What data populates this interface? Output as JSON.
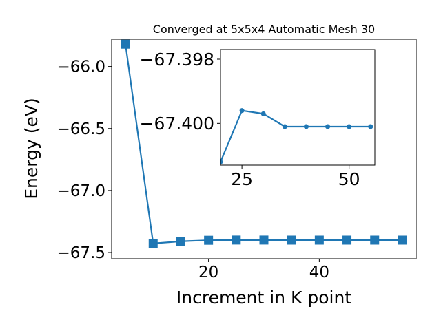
{
  "chart_data": [
    {
      "type": "line",
      "title": "Converged at 5x5x4 Automatic Mesh 30",
      "xlabel": "Increment in K point",
      "ylabel": "Energy (eV)",
      "xlim": [
        2.5,
        57.5
      ],
      "ylim": [
        -67.55,
        -65.78
      ],
      "xticks": [
        20,
        40
      ],
      "yticks": [
        -67.5,
        -67.0,
        -66.5,
        -66.0
      ],
      "xtick_labels": [
        "20",
        "40"
      ],
      "ytick_labels": [
        "−67.5",
        "−67.0",
        "−66.5",
        "−66.0"
      ],
      "marker": "square",
      "color": "#1f77b4",
      "grid": false,
      "legend": "none",
      "series": [
        {
          "x": [
            5,
            10,
            15,
            20,
            25,
            30,
            35,
            40,
            45,
            50,
            55
          ],
          "y": [
            -65.82,
            -67.427,
            -67.41,
            -67.4012,
            -67.3996,
            -67.3997,
            -67.4001,
            -67.4001,
            -67.4001,
            -67.4001,
            -67.4001
          ]
        }
      ]
    },
    {
      "type": "line",
      "title": "",
      "inset": true,
      "xlim": [
        20,
        56
      ],
      "ylim": [
        -67.4013,
        -67.3977
      ],
      "xticks": [
        25,
        50
      ],
      "yticks": [
        -67.4,
        -67.398
      ],
      "xtick_labels": [
        "25",
        "50"
      ],
      "ytick_labels": [
        "−67.400",
        "−67.398"
      ],
      "marker": "circle",
      "color": "#1f77b4",
      "grid": false,
      "series": [
        {
          "x": [
            20,
            25,
            30,
            35,
            40,
            45,
            50,
            55
          ],
          "y": [
            -67.4012,
            -67.3996,
            -67.3997,
            -67.4001,
            -67.4001,
            -67.4001,
            -67.4001,
            -67.4001
          ]
        }
      ]
    }
  ]
}
